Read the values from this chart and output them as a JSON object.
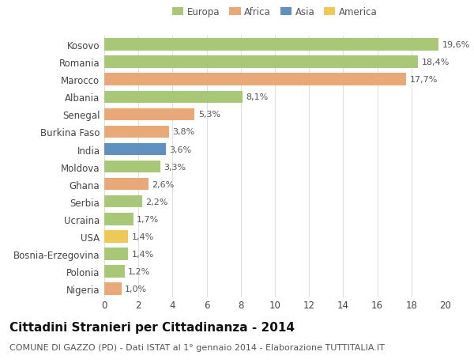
{
  "categories": [
    "Kosovo",
    "Romania",
    "Marocco",
    "Albania",
    "Senegal",
    "Burkina Faso",
    "India",
    "Moldova",
    "Ghana",
    "Serbia",
    "Ucraina",
    "USA",
    "Bosnia-Erzegovina",
    "Polonia",
    "Nigeria"
  ],
  "values": [
    19.6,
    18.4,
    17.7,
    8.1,
    5.3,
    3.8,
    3.6,
    3.3,
    2.6,
    2.2,
    1.7,
    1.4,
    1.4,
    1.2,
    1.0
  ],
  "labels": [
    "19,6%",
    "18,4%",
    "17,7%",
    "8,1%",
    "5,3%",
    "3,8%",
    "3,6%",
    "3,3%",
    "2,6%",
    "2,2%",
    "1,7%",
    "1,4%",
    "1,4%",
    "1,2%",
    "1,0%"
  ],
  "continents": [
    "Europa",
    "Europa",
    "Africa",
    "Europa",
    "Africa",
    "Africa",
    "Asia",
    "Europa",
    "Africa",
    "Europa",
    "Europa",
    "America",
    "Europa",
    "Europa",
    "Africa"
  ],
  "continent_colors": {
    "Europa": "#a8c878",
    "Africa": "#e8a878",
    "Asia": "#6090c0",
    "America": "#f0c858"
  },
  "legend_order": [
    "Europa",
    "Africa",
    "Asia",
    "America"
  ],
  "title": "Cittadini Stranieri per Cittadinanza - 2014",
  "subtitle": "COMUNE DI GAZZO (PD) - Dati ISTAT al 1° gennaio 2014 - Elaborazione TUTTITALIA.IT",
  "xlim": [
    0,
    20
  ],
  "xticks": [
    0,
    2,
    4,
    6,
    8,
    10,
    12,
    14,
    16,
    18,
    20
  ],
  "background_color": "#ffffff",
  "grid_color": "#e0e0e0",
  "bar_height": 0.7,
  "label_fontsize": 8,
  "tick_fontsize": 8.5,
  "title_fontsize": 11,
  "subtitle_fontsize": 8
}
